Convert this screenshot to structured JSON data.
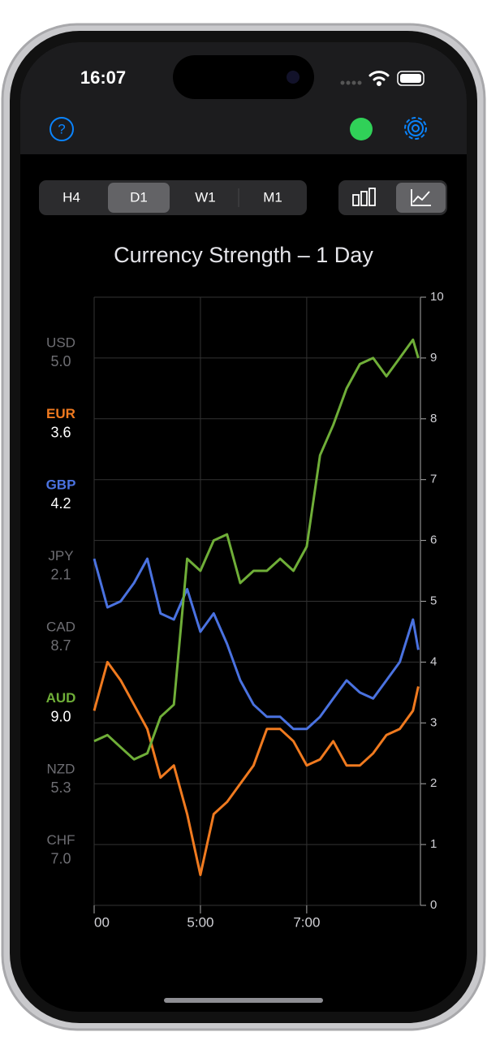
{
  "status_bar": {
    "time": "16:07"
  },
  "timeframes": {
    "options": [
      "H4",
      "D1",
      "W1",
      "M1"
    ],
    "selected": 1
  },
  "chart_modes": {
    "selected": 1
  },
  "currencies": [
    {
      "code": "USD",
      "value": "5.0",
      "color": "#6e6e73",
      "value_color": "#6e6e73"
    },
    {
      "code": "EUR",
      "value": "3.6",
      "color": "#f07a1f",
      "value_color": "#ffffff"
    },
    {
      "code": "GBP",
      "value": "4.2",
      "color": "#4a72e0",
      "value_color": "#ffffff"
    },
    {
      "code": "JPY",
      "value": "2.1",
      "color": "#6e6e73",
      "value_color": "#6e6e73"
    },
    {
      "code": "CAD",
      "value": "8.7",
      "color": "#6e6e73",
      "value_color": "#6e6e73"
    },
    {
      "code": "AUD",
      "value": "9.0",
      "color": "#6fae38",
      "value_color": "#ffffff"
    },
    {
      "code": "NZD",
      "value": "5.3",
      "color": "#6e6e73",
      "value_color": "#6e6e73"
    },
    {
      "code": "CHF",
      "value": "7.0",
      "color": "#6e6e73",
      "value_color": "#6e6e73"
    }
  ],
  "chart_data": {
    "type": "line",
    "title": "Currency Strength – 1 Day",
    "x": [
      3,
      3.25,
      3.5,
      3.75,
      4,
      4.25,
      4.5,
      4.75,
      5,
      5.25,
      5.5,
      5.75,
      6,
      6.25,
      6.5,
      6.75,
      7,
      7.25,
      7.5,
      7.75,
      8,
      8.25,
      8.5,
      8.75,
      9,
      9.1
    ],
    "series": [
      {
        "name": "EUR",
        "color": "#f07a1f",
        "values": [
          3.2,
          4.0,
          3.7,
          3.3,
          2.9,
          2.1,
          2.3,
          1.5,
          0.5,
          1.5,
          1.7,
          2.0,
          2.3,
          2.9,
          2.9,
          2.7,
          2.3,
          2.4,
          2.7,
          2.3,
          2.3,
          2.5,
          2.8,
          2.9,
          3.2,
          3.6
        ]
      },
      {
        "name": "GBP",
        "color": "#4a72e0",
        "values": [
          5.7,
          4.9,
          5.0,
          5.3,
          5.7,
          4.8,
          4.7,
          5.2,
          4.5,
          4.8,
          4.3,
          3.7,
          3.3,
          3.1,
          3.1,
          2.9,
          2.9,
          3.1,
          3.4,
          3.7,
          3.5,
          3.4,
          3.7,
          4.0,
          4.7,
          4.2
        ]
      },
      {
        "name": "AUD",
        "color": "#6fae38",
        "values": [
          2.7,
          2.8,
          2.6,
          2.4,
          2.5,
          3.1,
          3.3,
          5.7,
          5.5,
          6.0,
          6.1,
          5.3,
          5.5,
          5.5,
          5.7,
          5.5,
          5.9,
          7.4,
          7.9,
          8.5,
          8.9,
          9.0,
          8.7,
          9.0,
          9.3,
          9.0
        ]
      }
    ],
    "xlim": [
      3,
      9.14
    ],
    "xticks": [
      {
        "value": 3,
        "label": "00"
      },
      {
        "value": 5,
        "label": "5:00"
      },
      {
        "value": 7,
        "label": "7:00"
      }
    ],
    "ylim": [
      0,
      10
    ],
    "yticks": [
      0,
      1,
      2,
      3,
      4,
      5,
      6,
      7,
      8,
      9,
      10
    ],
    "grid": true
  }
}
